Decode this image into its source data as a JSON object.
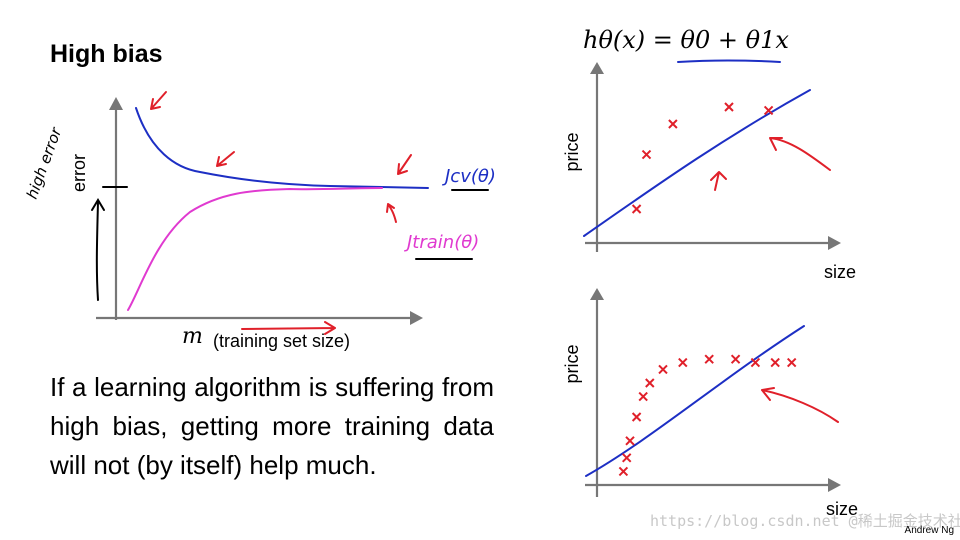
{
  "slide": {
    "title": "High bias",
    "paragraph": "If a learning algorithm is suffering from high bias, getting more training data will not (by itself) help much.",
    "credit": "Andrew Ng",
    "watermark": "https://blog.csdn.net @稀土掘金技术社区"
  },
  "learning_curve": {
    "ylabel": "error",
    "xlabel_symbol": "m",
    "xlabel_text": "(training set size)",
    "cv_label": "Jcv(θ)",
    "train_label": "Jtrain(θ)",
    "side_note": "high error"
  },
  "hypothesis_label": "hθ(x) = θ0 + θ1x",
  "chart_data": [
    {
      "type": "line",
      "title": "",
      "xlabel": "m (training set size)",
      "ylabel": "error",
      "grid": false,
      "series": [
        {
          "name": "Jcv(θ)",
          "color": "#1d2fc4",
          "shape": "decreasing, plateaus high"
        },
        {
          "name": "Jtrain(θ)",
          "color": "#e03ad0",
          "shape": "increasing, plateaus close to Jcv"
        }
      ]
    },
    {
      "type": "scatter",
      "title": "",
      "xlabel": "size",
      "ylabel": "price",
      "fit": "straight line",
      "points": [
        [
          1.2,
          1.0
        ],
        [
          1.5,
          2.6
        ],
        [
          2.3,
          3.5
        ],
        [
          4.0,
          4.0
        ],
        [
          5.2,
          3.9
        ]
      ],
      "xlim": [
        0,
        7
      ],
      "ylim": [
        0,
        5
      ]
    },
    {
      "type": "scatter",
      "title": "",
      "xlabel": "size",
      "ylabel": "price",
      "fit": "straight line",
      "points": [
        [
          0.8,
          0.4
        ],
        [
          0.9,
          0.8
        ],
        [
          1.0,
          1.3
        ],
        [
          1.2,
          2.0
        ],
        [
          1.4,
          2.6
        ],
        [
          1.6,
          3.0
        ],
        [
          2.0,
          3.4
        ],
        [
          2.6,
          3.6
        ],
        [
          3.4,
          3.7
        ],
        [
          4.2,
          3.7
        ],
        [
          4.8,
          3.6
        ],
        [
          5.4,
          3.6
        ],
        [
          5.9,
          3.6
        ]
      ],
      "xlim": [
        0,
        7
      ],
      "ylim": [
        0,
        5
      ]
    }
  ]
}
